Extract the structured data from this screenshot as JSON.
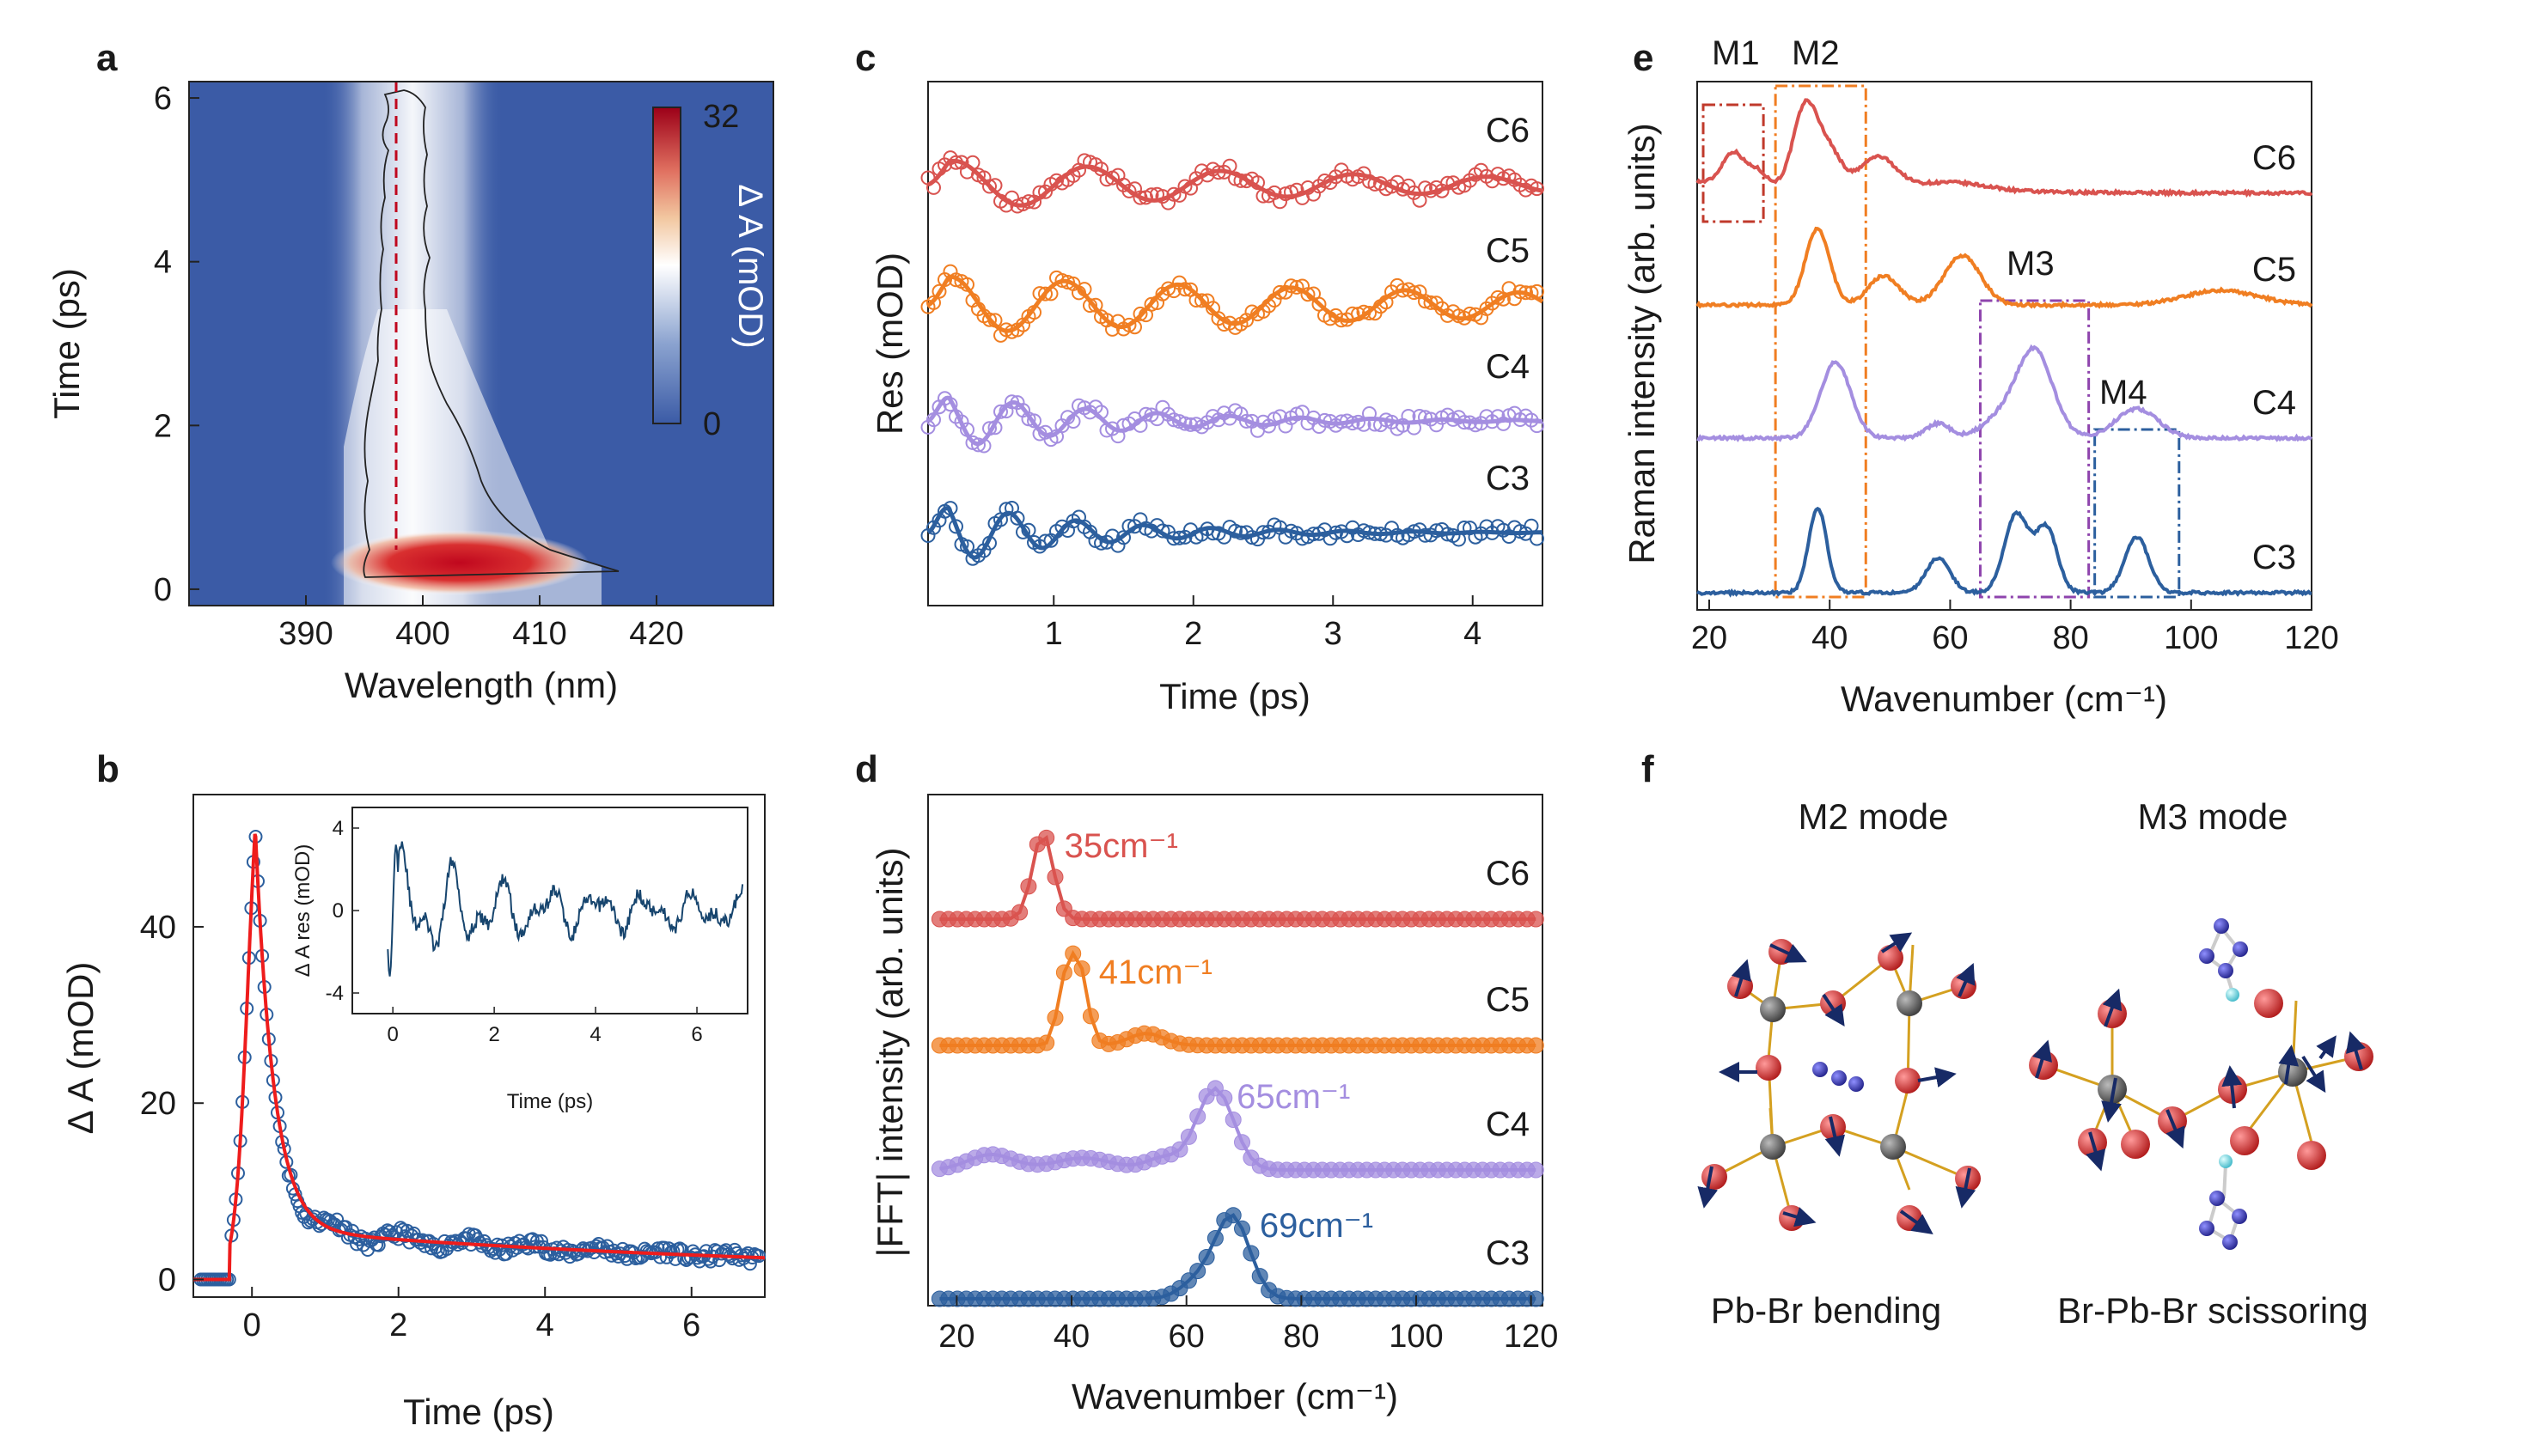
{
  "colors": {
    "C6": "#d9534f",
    "C5": "#f07e22",
    "C4": "#a48ee0",
    "C3": "#2c5f9e",
    "fit_red": "#ee1c1c",
    "inset_line": "#17456e",
    "colormap_low": "#3b5ba6",
    "colormap_mid": "#ffffff",
    "colormap_high": "#c0071e",
    "dashed": "#c0071e",
    "box_M1": "#c0392b",
    "box_M2": "#f07e22",
    "box_M3": "#8e44ad",
    "box_M4": "#2c5f9e",
    "bond": "#d4a020",
    "atom_br": "#d63b3b",
    "atom_pb": "#606060",
    "atom_n": "#3a3aaa",
    "atom_h": "#6ad9d9",
    "arrow": "#172a66"
  },
  "panels": {
    "a": {
      "label": "a"
    },
    "b": {
      "label": "b"
    },
    "c": {
      "label": "c"
    },
    "d": {
      "label": "d"
    },
    "e": {
      "label": "e"
    },
    "f": {
      "label": "f",
      "left_title": "M2 mode",
      "right_title": "M3 mode",
      "left_caption": "Pb-Br bending",
      "right_caption": "Br-Pb-Br scissoring"
    }
  },
  "chart_data": [
    {
      "id": "a",
      "type": "heatmap",
      "xlabel": "Wavelength (nm)",
      "ylabel": "Time (ps)",
      "xlim": [
        380,
        430
      ],
      "ylim": [
        -0.2,
        6.2
      ],
      "xticks": [
        390,
        400,
        410,
        420
      ],
      "yticks": [
        0,
        2,
        4,
        6
      ],
      "colorbar": {
        "label": "Δ A (mOD)",
        "min": 0,
        "max": 32,
        "ticks": [
          "32",
          "0"
        ]
      },
      "band_center_nm": 398,
      "peak": {
        "wavelength": 400,
        "time": 0.3,
        "value": 32
      },
      "dashed_line_nm": 398
    },
    {
      "id": "b",
      "type": "scatter",
      "xlabel": "Time (ps)",
      "ylabel": "Δ A (mOD)",
      "xlim": [
        -0.8,
        7
      ],
      "ylim": [
        -2,
        55
      ],
      "xticks": [
        0,
        2,
        4,
        6
      ],
      "yticks": [
        0,
        20,
        40
      ],
      "fit": {
        "rise_center": -0.05,
        "rise_width": 0.09,
        "peak": 52,
        "decay_fast_amp": 44.5,
        "decay_fast_tau": 0.25,
        "plateau": 7.5,
        "decay_slow_tau": 8
      },
      "inset": {
        "xlabel": "Time (ps)",
        "ylabel": "Δ A res (mOD)",
        "xlim": [
          -0.8,
          7
        ],
        "ylim": [
          -5,
          5
        ],
        "xticks": [
          0,
          2,
          4,
          6
        ],
        "yticks": [
          4,
          0,
          -4
        ]
      }
    },
    {
      "id": "c",
      "type": "line",
      "xlabel": "Time (ps)",
      "ylabel": "Res (mOD)",
      "xlim": [
        0.1,
        4.5
      ],
      "xticks": [
        1,
        2,
        3,
        4
      ],
      "series": [
        {
          "name": "C6",
          "freq_cm": 35,
          "amp": 1.0,
          "tau": 3.5
        },
        {
          "name": "C5",
          "freq_cm": 41,
          "amp": 1.15,
          "tau": 5
        },
        {
          "name": "C4",
          "freq_cm": 65,
          "amp": 1.3,
          "tau": 1.2
        },
        {
          "name": "C3",
          "freq_cm": 69,
          "amp": 1.5,
          "tau": 1.0
        }
      ]
    },
    {
      "id": "d",
      "type": "line",
      "xlabel": "Wavenumber (cm⁻¹)",
      "ylabel": "|FFT| intensity (arb. units)",
      "xlim": [
        15,
        122
      ],
      "xticks": [
        20,
        40,
        60,
        80,
        100,
        120
      ],
      "series": [
        {
          "name": "C6",
          "peak_cm": 35,
          "peak_label": "35cm⁻¹"
        },
        {
          "name": "C5",
          "peak_cm": 41,
          "peak_label": "41cm⁻¹"
        },
        {
          "name": "C4",
          "peak_cm": 65,
          "peak_label": "65cm⁻¹"
        },
        {
          "name": "C3",
          "peak_cm": 69,
          "peak_label": "69cm⁻¹"
        }
      ]
    },
    {
      "id": "e",
      "type": "line",
      "xlabel": "Wavenumber (cm⁻¹)",
      "ylabel": "Raman intensity (arb. units)",
      "xlim": [
        18,
        120
      ],
      "xticks": [
        20,
        40,
        60,
        80,
        100,
        120
      ],
      "series": [
        {
          "name": "C6",
          "peaks": [
            [
              24,
              0.55,
              1.8
            ],
            [
              28,
              0.25,
              1.5
            ],
            [
              36,
              1.4,
              2
            ],
            [
              40,
              0.6,
              2
            ],
            [
              48,
              0.55,
              3
            ],
            [
              60,
              0.15,
              6
            ]
          ]
        },
        {
          "name": "C5",
          "peaks": [
            [
              38,
              1.3,
              2
            ],
            [
              49,
              0.5,
              2.5
            ],
            [
              62,
              0.85,
              3
            ],
            [
              105,
              0.25,
              6
            ]
          ]
        },
        {
          "name": "C4",
          "peaks": [
            [
              41,
              1.3,
              2.5
            ],
            [
              58,
              0.25,
              2
            ],
            [
              74,
              1.5,
              3
            ],
            [
              68,
              0.3,
              3
            ],
            [
              91,
              0.5,
              3.5
            ]
          ]
        },
        {
          "name": "C3",
          "peaks": [
            [
              38,
              1.45,
              1.5
            ],
            [
              58,
              0.6,
              2
            ],
            [
              71,
              1.35,
              2
            ],
            [
              76,
              1.1,
              1.8
            ],
            [
              91,
              0.95,
              2
            ]
          ]
        }
      ],
      "boxes": [
        {
          "name": "M1",
          "range": [
            19,
            29
          ]
        },
        {
          "name": "M2",
          "range": [
            31,
            46
          ]
        },
        {
          "name": "M3",
          "range": [
            65,
            83
          ]
        },
        {
          "name": "M4",
          "range": [
            84,
            98
          ]
        }
      ]
    }
  ]
}
